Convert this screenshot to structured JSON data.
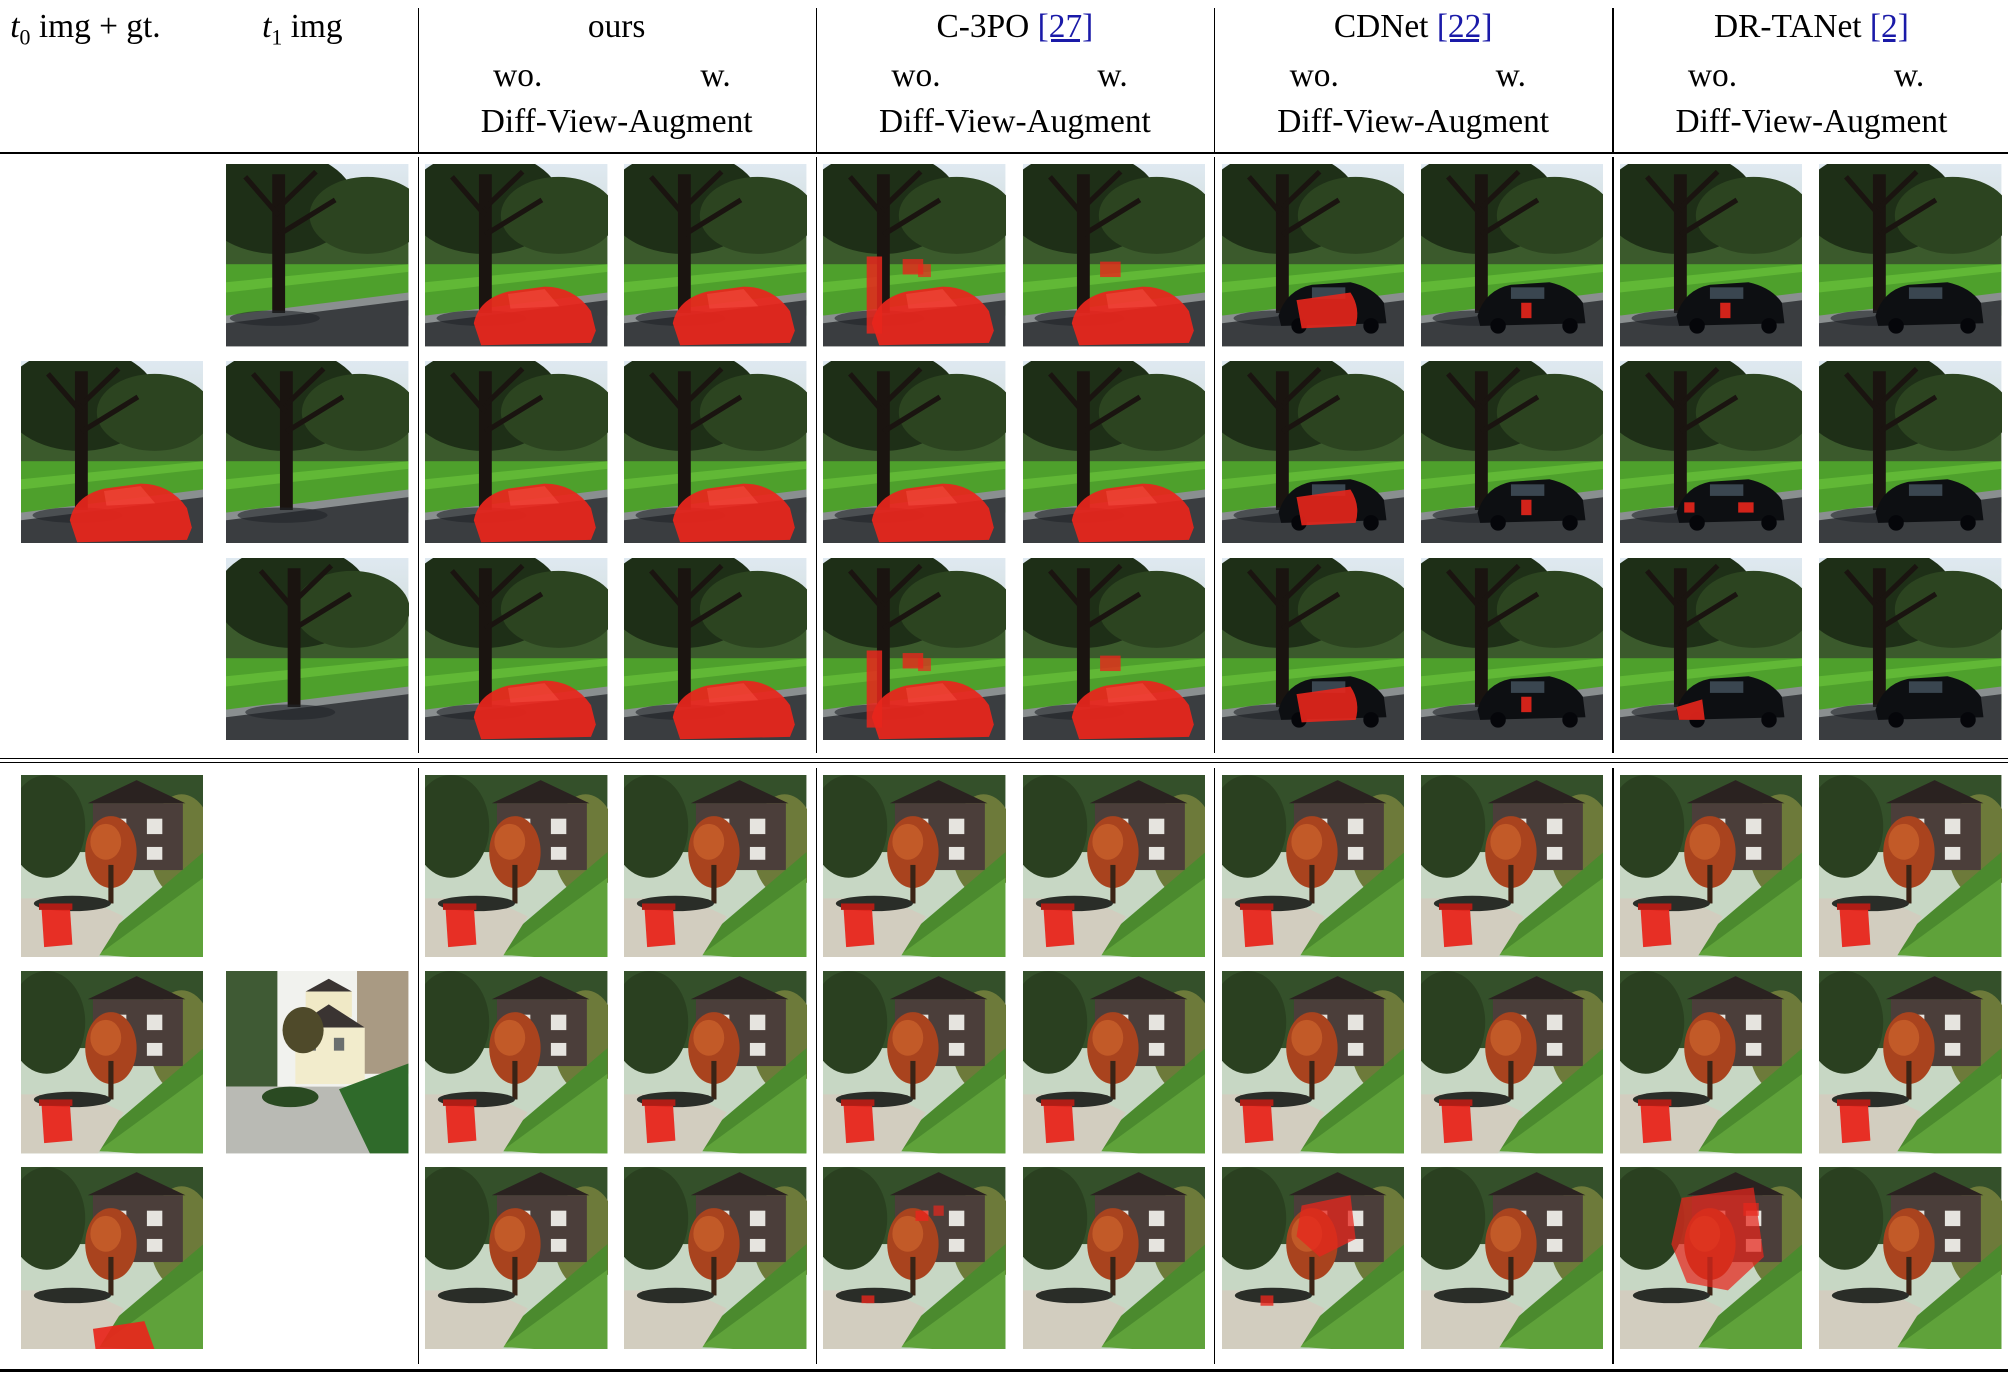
{
  "header": {
    "col_t0": {
      "var": "t",
      "sub": "0",
      "text": " img + gt."
    },
    "col_t1": {
      "var": "t",
      "sub": "1",
      "text": " img"
    },
    "methods": [
      {
        "name": "ours",
        "ref": "",
        "wo": "wo.",
        "w": "w.",
        "augment": "Diff-View-Augment"
      },
      {
        "name": "C-3PO ",
        "ref": "[27]",
        "wo": "wo.",
        "w": "w.",
        "augment": "Diff-View-Augment"
      },
      {
        "name": "CDNet ",
        "ref": "[22]",
        "wo": "wo.",
        "w": "w.",
        "augment": "Diff-View-Augment"
      },
      {
        "name": "DR-TANet ",
        "ref": "[2]",
        "wo": "wo.",
        "w": "w.",
        "augment": "Diff-View-Augment"
      }
    ]
  },
  "mask_color": "#e8261c",
  "blocks": [
    {
      "scene": "park",
      "t0": {
        "row": 1,
        "mask": "car"
      },
      "t1": [
        {
          "row": 0,
          "variant": 0
        },
        {
          "row": 1,
          "variant": 1
        },
        {
          "row": 2,
          "variant": 2
        }
      ],
      "results": [
        [
          "car",
          "car",
          "car-tree",
          "car-tree-small",
          "black-car-partial",
          "black-car-spot",
          "black-car-spot",
          "black-car"
        ],
        [
          "car",
          "car",
          "car",
          "car",
          "black-car-partial",
          "black-car-spot",
          "black-car-spots",
          "black-car"
        ],
        [
          "car",
          "car",
          "car-tree",
          "car-tree-small",
          "black-car-partial",
          "black-car-spot",
          "black-car-front",
          "black-car"
        ]
      ]
    },
    {
      "scene": "house",
      "t1": {
        "row": 1
      },
      "t0_rows": [
        "bin",
        "bin",
        "bin-ground"
      ],
      "results": [
        [
          "bin",
          "bin",
          "bin",
          "bin",
          "bin",
          "bin",
          "bin",
          "bin"
        ],
        [
          "bin",
          "bin",
          "bin",
          "bin",
          "bin",
          "bin",
          "bin",
          "bin"
        ],
        [
          "none",
          "none",
          "small-house",
          "none",
          "house-blob",
          "none",
          "house-big",
          "none"
        ]
      ]
    }
  ]
}
